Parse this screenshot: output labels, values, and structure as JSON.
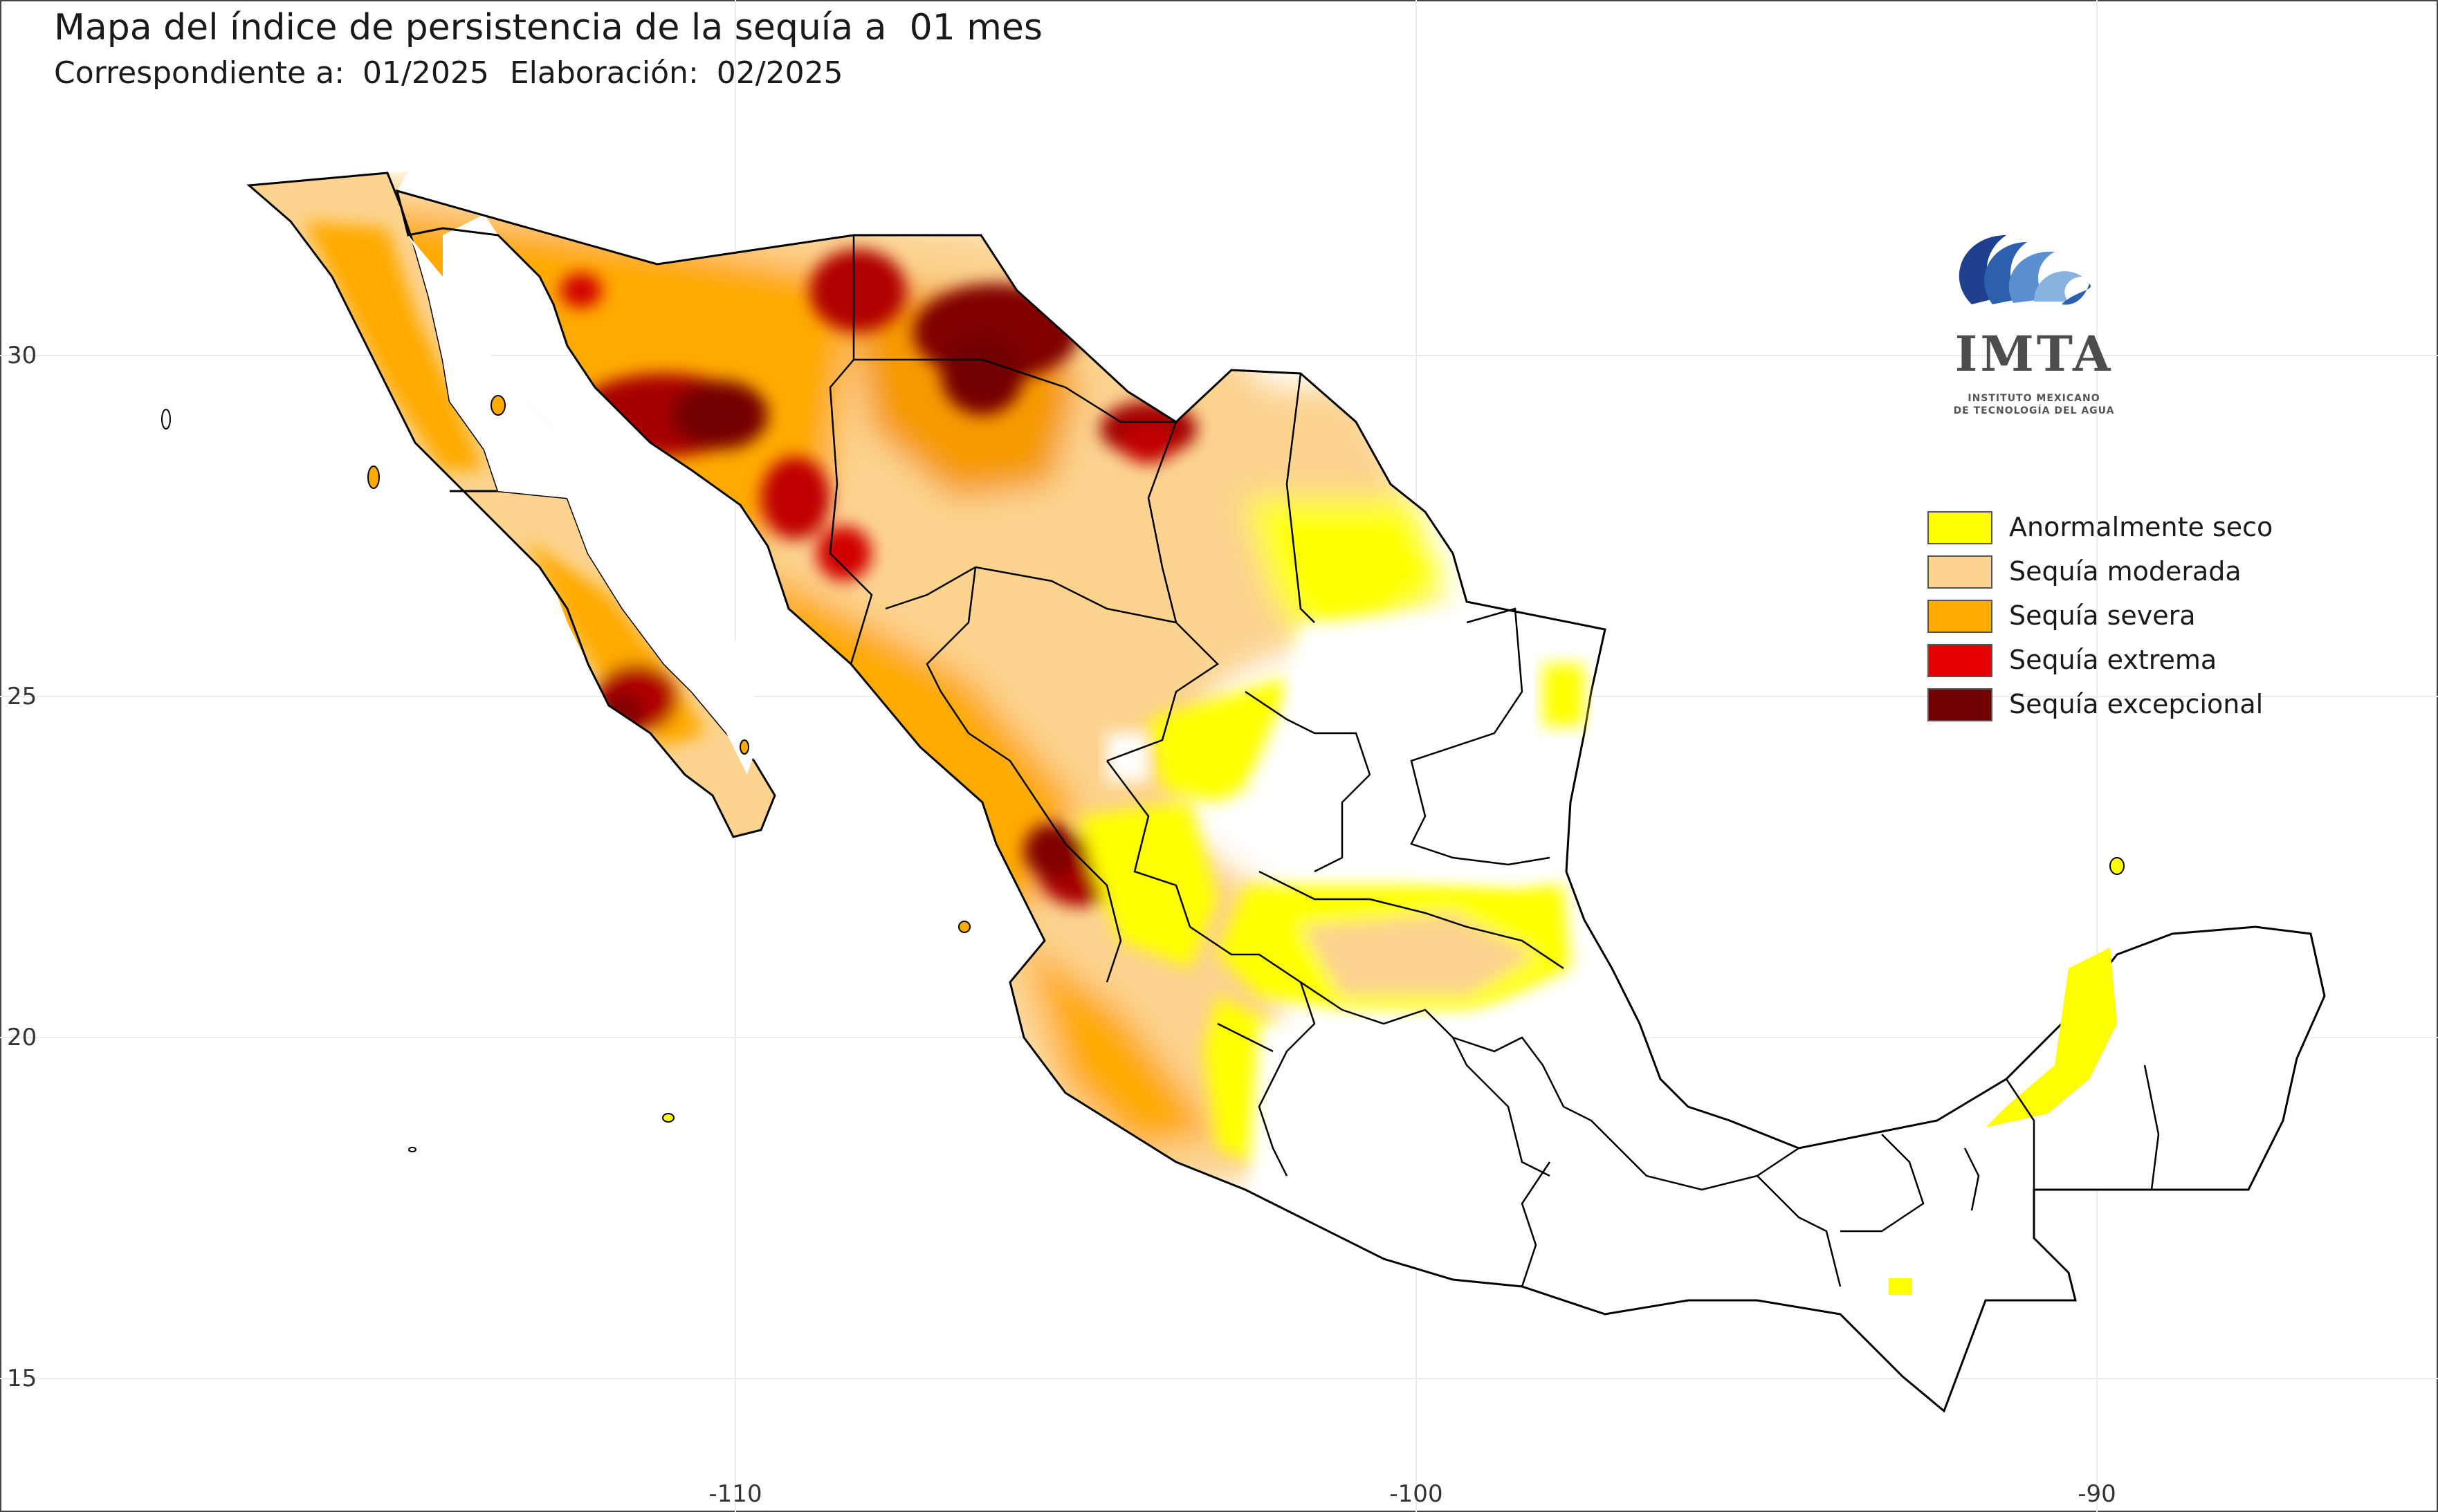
{
  "header": {
    "title": "Mapa del índice de persistencia de la sequía a  01 mes",
    "corresponding_label": "Correspondiente a:",
    "corresponding_value": "01/2025",
    "elaboration_label": "Elaboración:",
    "elaboration_value": "02/2025"
  },
  "axes": {
    "y_ticks": [
      "30",
      "25",
      "20",
      "15"
    ],
    "x_ticks": [
      "-110",
      "-100",
      "-90"
    ]
  },
  "logo": {
    "name": "IMTA",
    "line1": "INSTITUTO MEXICANO",
    "line2": "DE TECNOLOGÍA DEL AGUA",
    "icon": "imta-wave-logo"
  },
  "legend": {
    "items": [
      {
        "label": "Anormalmente seco",
        "color": "#ffff00"
      },
      {
        "label": "Sequía moderada",
        "color": "#fcd38f"
      },
      {
        "label": "Sequía severa",
        "color": "#ffaa00"
      },
      {
        "label": "Sequía extrema",
        "color": "#e60000"
      },
      {
        "label": "Sequía excepcional",
        "color": "#730000"
      }
    ]
  },
  "colors": {
    "abnormally_dry": "#ffff00",
    "moderate": "#fcd38f",
    "severe": "#ffaa00",
    "extreme": "#e60000",
    "exceptional": "#730000",
    "land_no_drought": "#ffffff",
    "borders": "#000000",
    "grid": "#e6e6e6"
  }
}
